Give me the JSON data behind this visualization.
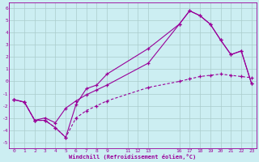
{
  "xlabel": "Windchill (Refroidissement éolien,°C)",
  "bg_color": "#cceef2",
  "grid_color": "#aacccc",
  "line_color": "#990099",
  "xlim": [
    -0.5,
    23.5
  ],
  "ylim": [
    -5.5,
    6.5
  ],
  "xticks": [
    0,
    1,
    2,
    3,
    4,
    5,
    6,
    7,
    8,
    9,
    11,
    12,
    13,
    16,
    17,
    18,
    19,
    20,
    21,
    22,
    23
  ],
  "yticks": [
    -5,
    -4,
    -3,
    -2,
    -1,
    0,
    1,
    2,
    3,
    4,
    5,
    6
  ],
  "line1_x": [
    0,
    1,
    2,
    3,
    4,
    5,
    6,
    7,
    8,
    9,
    13,
    16,
    17,
    18,
    19,
    20,
    21,
    22,
    23
  ],
  "line1_y": [
    -1.5,
    -1.7,
    -3.2,
    -3.2,
    -3.8,
    -4.6,
    -1.9,
    -0.6,
    -0.3,
    0.6,
    2.7,
    4.7,
    5.8,
    5.4,
    4.7,
    3.4,
    2.2,
    2.5,
    -0.2
  ],
  "line2_x": [
    0,
    1,
    2,
    3,
    4,
    5,
    6,
    7,
    8,
    9,
    13,
    16,
    17,
    18,
    19,
    20,
    21,
    22,
    23
  ],
  "line2_y": [
    -1.5,
    -1.7,
    -3.2,
    -3.2,
    -3.8,
    -4.6,
    -3.0,
    -2.4,
    -2.0,
    -1.6,
    -0.5,
    0.0,
    0.2,
    0.4,
    0.5,
    0.6,
    0.5,
    0.4,
    0.3
  ],
  "line3_x": [
    0,
    1,
    2,
    3,
    4,
    5,
    6,
    7,
    8,
    9,
    13,
    16,
    17,
    18,
    19,
    20,
    21,
    22,
    23
  ],
  "line3_y": [
    -1.5,
    -1.7,
    -3.2,
    -3.0,
    -3.4,
    -2.2,
    -1.6,
    -1.1,
    -0.7,
    -0.3,
    1.5,
    4.7,
    5.8,
    5.4,
    4.7,
    3.4,
    2.2,
    2.5,
    -0.2
  ]
}
